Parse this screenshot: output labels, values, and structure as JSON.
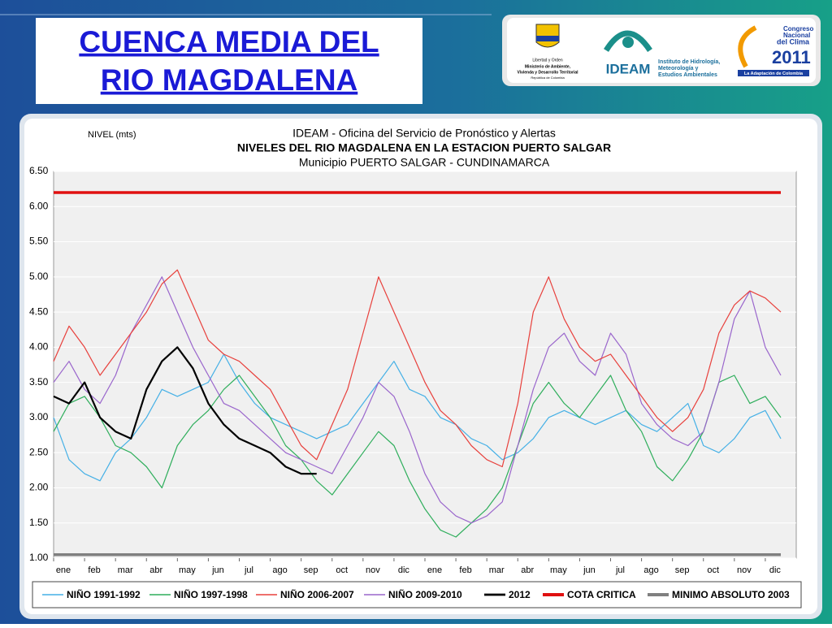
{
  "slide": {
    "title": [
      "CUENCA  MEDIA DEL",
      "RIO  MAGDALENA"
    ]
  },
  "logos": {
    "ministry": [
      "Libertad y Orden",
      "Ministerio de Ambiente,",
      "Vivienda y Desarrollo Territorial",
      "República de Colombia"
    ],
    "ideam": "IDEAM",
    "ideam_name": [
      "Instituto de Hidrología,",
      "Meteorología y",
      "Estudios Ambientales"
    ],
    "congress": [
      "Congreso",
      "Nacional",
      "del Clima",
      "2011"
    ],
    "congress_tag": "La Adaptación de Colombia"
  },
  "chart_data": {
    "type": "line",
    "y_label": "NIVEL (mts)",
    "subtitle": "IDEAM - Oficina del Servicio de Pronóstico y Alertas",
    "title": "NIVELES DEL RIO MAGDALENA EN LA ESTACION PUERTO SALGAR",
    "subtitle2": "Municipio PUERTO SALGAR  - CUNDINAMARCA",
    "x": [
      0,
      0.5,
      1,
      1.5,
      2,
      2.5,
      3,
      3.5,
      4,
      4.5,
      5,
      5.5,
      6,
      6.5,
      7,
      7.5,
      8,
      8.5,
      9,
      9.5,
      10,
      10.5,
      11,
      11.5,
      12,
      12.5,
      13,
      13.5,
      14,
      14.5,
      15,
      15.5,
      16,
      16.5,
      17,
      17.5,
      18,
      18.5,
      19,
      19.5,
      20,
      20.5,
      21,
      21.5,
      22,
      22.5,
      23,
      23.5
    ],
    "xlim": [
      0,
      24
    ],
    "xticks": [
      {
        "value": 0,
        "label": "ene"
      },
      {
        "value": 1,
        "label": "feb"
      },
      {
        "value": 2,
        "label": "mar"
      },
      {
        "value": 3,
        "label": "abr"
      },
      {
        "value": 4,
        "label": "may"
      },
      {
        "value": 5,
        "label": "jun"
      },
      {
        "value": 6,
        "label": "jul"
      },
      {
        "value": 7,
        "label": "ago"
      },
      {
        "value": 8,
        "label": "sep"
      },
      {
        "value": 9,
        "label": "oct"
      },
      {
        "value": 10,
        "label": "nov"
      },
      {
        "value": 11,
        "label": "dic"
      },
      {
        "value": 12,
        "label": "ene"
      },
      {
        "value": 13,
        "label": "feb"
      },
      {
        "value": 14,
        "label": "mar"
      },
      {
        "value": 15,
        "label": "abr"
      },
      {
        "value": 16,
        "label": "may"
      },
      {
        "value": 17,
        "label": "jun"
      },
      {
        "value": 18,
        "label": "jul"
      },
      {
        "value": 19,
        "label": "ago"
      },
      {
        "value": 20,
        "label": "sep"
      },
      {
        "value": 21,
        "label": "oct"
      },
      {
        "value": 22,
        "label": "nov"
      },
      {
        "value": 23,
        "label": "dic"
      }
    ],
    "ylim": [
      1,
      6.5
    ],
    "yticks": [
      {
        "value": 1,
        "label": "1.00"
      },
      {
        "value": 1.5,
        "label": "1.50"
      },
      {
        "value": 2,
        "label": "2.00"
      },
      {
        "value": 2.5,
        "label": "2.50"
      },
      {
        "value": 3,
        "label": "3.00"
      },
      {
        "value": 3.5,
        "label": "3.50"
      },
      {
        "value": 4,
        "label": "4.00"
      },
      {
        "value": 4.5,
        "label": "4.50"
      },
      {
        "value": 5,
        "label": "5.00"
      },
      {
        "value": 5.5,
        "label": "5.50"
      },
      {
        "value": 6,
        "label": "6.00"
      },
      {
        "value": 6.5,
        "label": "6.50"
      }
    ],
    "grid": true,
    "legend": "bottom",
    "series": [
      {
        "name": "NIÑO 1991-1992",
        "color": "#45b0e6",
        "width": 1.2,
        "values": [
          3.0,
          2.4,
          2.2,
          2.1,
          2.5,
          2.7,
          3.0,
          3.4,
          3.3,
          3.4,
          3.5,
          3.9,
          3.5,
          3.2,
          3.0,
          2.9,
          2.8,
          2.7,
          2.8,
          2.9,
          3.2,
          3.5,
          3.8,
          3.4,
          3.3,
          3.0,
          2.9,
          2.7,
          2.6,
          2.4,
          2.5,
          2.7,
          3.0,
          3.1,
          3.0,
          2.9,
          3.0,
          3.1,
          2.9,
          2.8,
          3.0,
          3.2,
          2.6,
          2.5,
          2.7,
          3.0,
          3.1,
          2.7
        ]
      },
      {
        "name": "NIÑO 1997-1998",
        "color": "#2fae5c",
        "width": 1.2,
        "values": [
          2.8,
          3.2,
          3.3,
          3.0,
          2.6,
          2.5,
          2.3,
          2.0,
          2.6,
          2.9,
          3.1,
          3.4,
          3.6,
          3.3,
          3.0,
          2.6,
          2.4,
          2.1,
          1.9,
          2.2,
          2.5,
          2.8,
          2.6,
          2.1,
          1.7,
          1.4,
          1.3,
          1.5,
          1.7,
          2.0,
          2.6,
          3.2,
          3.5,
          3.2,
          3.0,
          3.3,
          3.6,
          3.1,
          2.8,
          2.3,
          2.1,
          2.4,
          2.8,
          3.5,
          3.6,
          3.2,
          3.3,
          3.0
        ]
      },
      {
        "name": "NIÑO 2006-2007",
        "color": "#e8403c",
        "width": 1.2,
        "values": [
          3.8,
          4.3,
          4.0,
          3.6,
          3.9,
          4.2,
          4.5,
          4.9,
          5.1,
          4.6,
          4.1,
          3.9,
          3.8,
          3.6,
          3.4,
          3.0,
          2.6,
          2.4,
          2.9,
          3.4,
          4.2,
          5.0,
          4.5,
          4.0,
          3.5,
          3.1,
          2.9,
          2.6,
          2.4,
          2.3,
          3.2,
          4.5,
          5.0,
          4.4,
          4.0,
          3.8,
          3.9,
          3.6,
          3.3,
          3.0,
          2.8,
          3.0,
          3.4,
          4.2,
          4.6,
          4.8,
          4.7,
          4.5
        ]
      },
      {
        "name": "NIÑO 2009-2010",
        "color": "#9a66cc",
        "width": 1.2,
        "values": [
          3.5,
          3.8,
          3.4,
          3.2,
          3.6,
          4.2,
          4.6,
          5.0,
          4.5,
          4.0,
          3.6,
          3.2,
          3.1,
          2.9,
          2.7,
          2.5,
          2.4,
          2.3,
          2.2,
          2.6,
          3.0,
          3.5,
          3.3,
          2.8,
          2.2,
          1.8,
          1.6,
          1.5,
          1.6,
          1.8,
          2.6,
          3.4,
          4.0,
          4.2,
          3.8,
          3.6,
          4.2,
          3.9,
          3.2,
          2.9,
          2.7,
          2.6,
          2.8,
          3.5,
          4.4,
          4.8,
          4.0,
          3.6
        ]
      },
      {
        "name": "2012",
        "color": "#000000",
        "width": 2.2,
        "values": [
          3.3,
          3.2,
          3.5,
          3.0,
          2.8,
          2.7,
          3.4,
          3.8,
          4.0,
          3.7,
          3.2,
          2.9,
          2.7,
          2.6,
          2.5,
          2.3,
          2.2,
          2.2,
          null,
          null,
          null,
          null,
          null,
          null,
          null,
          null,
          null,
          null,
          null,
          null,
          null,
          null,
          null,
          null,
          null,
          null,
          null,
          null,
          null,
          null,
          null,
          null,
          null,
          null,
          null,
          null,
          null,
          null
        ]
      },
      {
        "name": "COTA CRITICA",
        "color": "#e01010",
        "width": 3.5,
        "values": [
          6.2,
          6.2,
          6.2,
          6.2,
          6.2,
          6.2,
          6.2,
          6.2,
          6.2,
          6.2,
          6.2,
          6.2,
          6.2,
          6.2,
          6.2,
          6.2,
          6.2,
          6.2,
          6.2,
          6.2,
          6.2,
          6.2,
          6.2,
          6.2,
          6.2,
          6.2,
          6.2,
          6.2,
          6.2,
          6.2,
          6.2,
          6.2,
          6.2,
          6.2,
          6.2,
          6.2,
          6.2,
          6.2,
          6.2,
          6.2,
          6.2,
          6.2,
          6.2,
          6.2,
          6.2,
          6.2,
          6.2,
          6.2
        ]
      },
      {
        "name": "MINIMO ABSOLUTO 2003",
        "color": "#808080",
        "width": 3.5,
        "values": [
          1.05,
          1.05,
          1.05,
          1.05,
          1.05,
          1.05,
          1.05,
          1.05,
          1.05,
          1.05,
          1.05,
          1.05,
          1.05,
          1.05,
          1.05,
          1.05,
          1.05,
          1.05,
          1.05,
          1.05,
          1.05,
          1.05,
          1.05,
          1.05,
          1.05,
          1.05,
          1.05,
          1.05,
          1.05,
          1.05,
          1.05,
          1.05,
          1.05,
          1.05,
          1.05,
          1.05,
          1.05,
          1.05,
          1.05,
          1.05,
          1.05,
          1.05,
          1.05,
          1.05,
          1.05,
          1.05,
          1.05,
          1.05
        ]
      }
    ]
  }
}
